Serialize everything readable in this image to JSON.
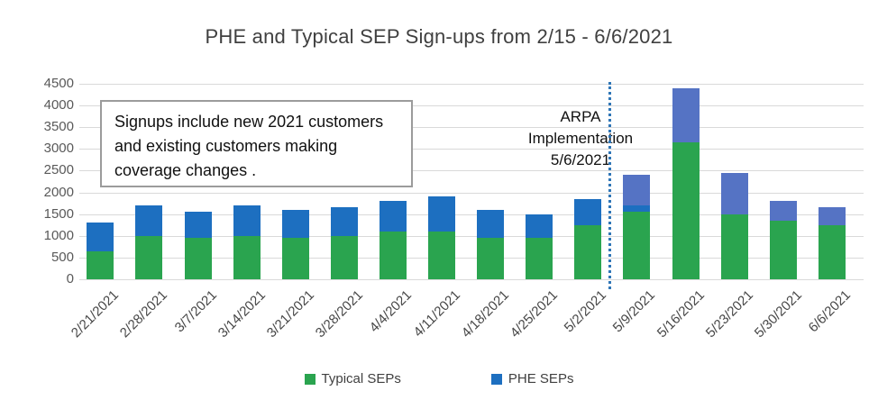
{
  "title": "PHE and Typical SEP Sign-ups from 2/15 - 6/6/2021",
  "annotation_box": {
    "text": "Signups include new 2021 customers and existing customers making coverage changes ."
  },
  "arpa_annotation": {
    "lines": [
      "ARPA",
      "Implementation",
      "5/6/2021"
    ],
    "divider_color": "#2e75b6"
  },
  "legend": {
    "items": [
      {
        "label": "Typical SEPs",
        "color": "#2aa44f"
      },
      {
        "label": "PHE SEPs",
        "color": "#1d6fc0"
      }
    ]
  },
  "chart_data": {
    "type": "bar",
    "stacked": true,
    "title": "PHE and Typical SEP Sign-ups from 2/15 - 6/6/2021",
    "xlabel": "",
    "ylabel": "",
    "ylim": [
      0,
      4500
    ],
    "yticks": [
      0,
      500,
      1000,
      1500,
      2000,
      2500,
      3000,
      3500,
      4000,
      4500
    ],
    "grid": true,
    "legend_position": "bottom",
    "categories": [
      "2/21/2021",
      "2/28/2021",
      "3/7/2021",
      "3/14/2021",
      "3/21/2021",
      "3/28/2021",
      "4/4/2021",
      "4/11/2021",
      "4/18/2021",
      "4/25/2021",
      "5/2/2021",
      "5/9/2021",
      "5/16/2021",
      "5/23/2021",
      "5/30/2021",
      "6/6/2021"
    ],
    "series": [
      {
        "name": "Typical SEPs",
        "in_legend": true,
        "color": "#2aa44f",
        "values": [
          650,
          1000,
          950,
          1000,
          950,
          1000,
          1100,
          1100,
          950,
          950,
          1250,
          1550,
          3150,
          1500,
          1350,
          1250
        ]
      },
      {
        "name": "PHE SEPs",
        "in_legend": true,
        "color": "#1d6fc0",
        "values": [
          650,
          700,
          600,
          700,
          650,
          650,
          700,
          800,
          650,
          550,
          600,
          150,
          0,
          0,
          0,
          0
        ]
      },
      {
        "name": "(unlabeled)",
        "in_legend": false,
        "color": "#5573c4",
        "values": [
          0,
          0,
          0,
          0,
          0,
          0,
          0,
          0,
          0,
          0,
          0,
          700,
          1250,
          950,
          450,
          400
        ]
      }
    ],
    "annotations": {
      "text_box": "Signups include new 2021 customers and existing customers making coverage changes .",
      "vertical_line_label": "ARPA Implementation 5/6/2021",
      "vertical_line_between": [
        "5/2/2021",
        "5/9/2021"
      ]
    },
    "gridline_color": "#d9d9d9",
    "axis_text_color": "#595959"
  }
}
